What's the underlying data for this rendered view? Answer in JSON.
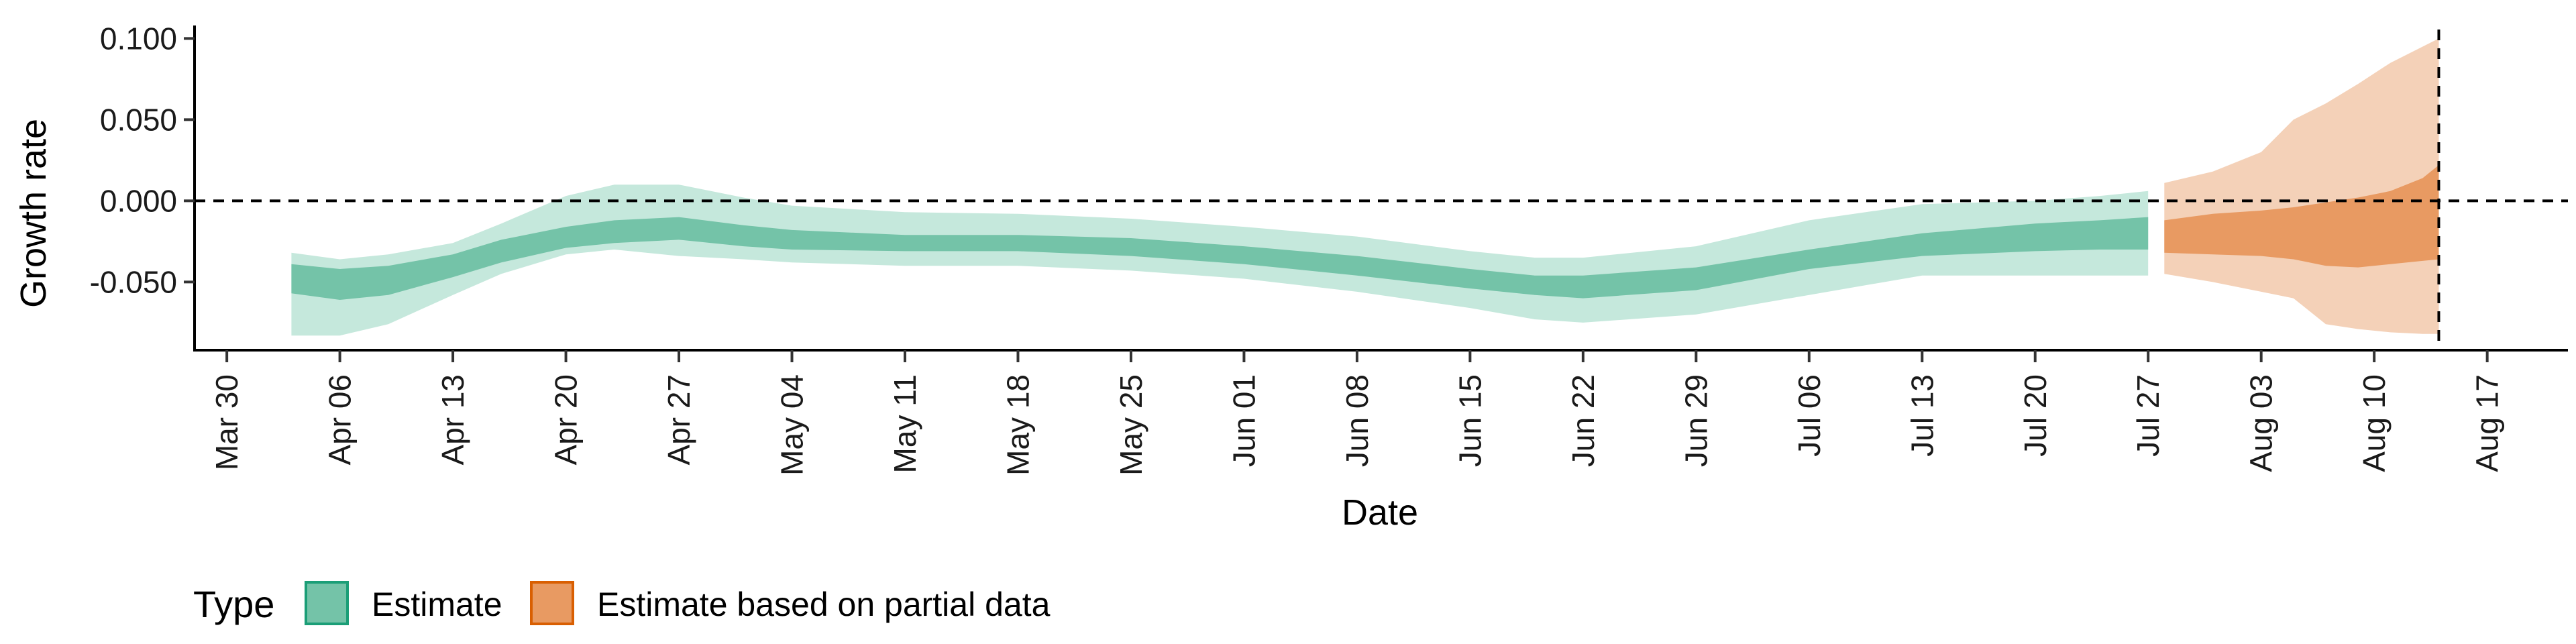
{
  "chart_data": {
    "type": "area",
    "xlabel": "Date",
    "ylabel": "Growth rate",
    "xlim": [
      "2020-03-28",
      "2020-08-22"
    ],
    "ylim": [
      -0.092,
      0.108
    ],
    "x_ticks": [
      "2020-03-30",
      "2020-04-06",
      "2020-04-13",
      "2020-04-20",
      "2020-04-27",
      "2020-05-04",
      "2020-05-11",
      "2020-05-18",
      "2020-05-25",
      "2020-06-01",
      "2020-06-08",
      "2020-06-15",
      "2020-06-22",
      "2020-06-29",
      "2020-07-06",
      "2020-07-13",
      "2020-07-20",
      "2020-07-27",
      "2020-08-03",
      "2020-08-10",
      "2020-08-17"
    ],
    "x_tick_labels": [
      "Mar 30",
      "Apr 06",
      "Apr 13",
      "Apr 20",
      "Apr 27",
      "May 04",
      "May 11",
      "May 18",
      "May 25",
      "Jun 01",
      "Jun 08",
      "Jun 15",
      "Jun 22",
      "Jun 29",
      "Jul 06",
      "Jul 13",
      "Jul 20",
      "Jul 27",
      "Aug 03",
      "Aug 10",
      "Aug 17"
    ],
    "y_ticks": [
      -0.05,
      0.0,
      0.05,
      0.1
    ],
    "y_tick_labels": [
      "-0.050",
      "0.000",
      "0.050",
      "0.100"
    ],
    "reference_lines": {
      "horizontal_y": 0.0,
      "vertical_x": "2020-08-14",
      "style": "dashed"
    },
    "legend": {
      "title": "Type",
      "position": "bottom-left"
    },
    "series": [
      {
        "name": "Estimate",
        "color": "#1b9e77",
        "fill_outer": "#c5e8dc",
        "fill_inner": "#74c3a8",
        "points": [
          {
            "x": "2020-04-03",
            "lo90": -0.083,
            "lo50": -0.057,
            "hi50": -0.039,
            "hi90": -0.032
          },
          {
            "x": "2020-04-06",
            "lo90": -0.083,
            "lo50": -0.061,
            "hi50": -0.042,
            "hi90": -0.036
          },
          {
            "x": "2020-04-09",
            "lo90": -0.076,
            "lo50": -0.058,
            "hi50": -0.04,
            "hi90": -0.033
          },
          {
            "x": "2020-04-13",
            "lo90": -0.058,
            "lo50": -0.047,
            "hi50": -0.033,
            "hi90": -0.026
          },
          {
            "x": "2020-04-16",
            "lo90": -0.045,
            "lo50": -0.038,
            "hi50": -0.024,
            "hi90": -0.014
          },
          {
            "x": "2020-04-20",
            "lo90": -0.033,
            "lo50": -0.029,
            "hi50": -0.016,
            "hi90": 0.003
          },
          {
            "x": "2020-04-23",
            "lo90": -0.03,
            "lo50": -0.026,
            "hi50": -0.012,
            "hi90": 0.01
          },
          {
            "x": "2020-04-27",
            "lo90": -0.034,
            "lo50": -0.024,
            "hi50": -0.01,
            "hi90": 0.01
          },
          {
            "x": "2020-05-01",
            "lo90": -0.036,
            "lo50": -0.028,
            "hi50": -0.015,
            "hi90": 0.002
          },
          {
            "x": "2020-05-04",
            "lo90": -0.038,
            "lo50": -0.03,
            "hi50": -0.018,
            "hi90": -0.003
          },
          {
            "x": "2020-05-11",
            "lo90": -0.04,
            "lo50": -0.031,
            "hi50": -0.021,
            "hi90": -0.007
          },
          {
            "x": "2020-05-18",
            "lo90": -0.04,
            "lo50": -0.031,
            "hi50": -0.021,
            "hi90": -0.008
          },
          {
            "x": "2020-05-25",
            "lo90": -0.043,
            "lo50": -0.034,
            "hi50": -0.023,
            "hi90": -0.011
          },
          {
            "x": "2020-06-01",
            "lo90": -0.048,
            "lo50": -0.039,
            "hi50": -0.028,
            "hi90": -0.016
          },
          {
            "x": "2020-06-08",
            "lo90": -0.056,
            "lo50": -0.046,
            "hi50": -0.034,
            "hi90": -0.022
          },
          {
            "x": "2020-06-15",
            "lo90": -0.066,
            "lo50": -0.054,
            "hi50": -0.042,
            "hi90": -0.031
          },
          {
            "x": "2020-06-19",
            "lo90": -0.073,
            "lo50": -0.058,
            "hi50": -0.046,
            "hi90": -0.035
          },
          {
            "x": "2020-06-22",
            "lo90": -0.075,
            "lo50": -0.06,
            "hi50": -0.046,
            "hi90": -0.035
          },
          {
            "x": "2020-06-29",
            "lo90": -0.07,
            "lo50": -0.055,
            "hi50": -0.041,
            "hi90": -0.028
          },
          {
            "x": "2020-07-06",
            "lo90": -0.058,
            "lo50": -0.042,
            "hi50": -0.03,
            "hi90": -0.012
          },
          {
            "x": "2020-07-13",
            "lo90": -0.046,
            "lo50": -0.034,
            "hi50": -0.02,
            "hi90": -0.002
          },
          {
            "x": "2020-07-20",
            "lo90": -0.046,
            "lo50": -0.031,
            "hi50": -0.014,
            "hi90": 0.0
          },
          {
            "x": "2020-07-24",
            "lo90": -0.046,
            "lo50": -0.03,
            "hi50": -0.012,
            "hi90": 0.003
          },
          {
            "x": "2020-07-27",
            "lo90": -0.046,
            "lo50": -0.03,
            "hi50": -0.01,
            "hi90": 0.006
          }
        ]
      },
      {
        "name": "Estimate based on partial data",
        "color": "#d95f02",
        "fill_outer": "#f4d1b8",
        "fill_inner": "#e89a62",
        "points": [
          {
            "x": "2020-07-28",
            "lo90": -0.045,
            "lo50": -0.032,
            "hi50": -0.012,
            "hi90": 0.011
          },
          {
            "x": "2020-07-31",
            "lo90": -0.05,
            "lo50": -0.033,
            "hi50": -0.008,
            "hi90": 0.018
          },
          {
            "x": "2020-08-03",
            "lo90": -0.056,
            "lo50": -0.034,
            "hi50": -0.006,
            "hi90": 0.03
          },
          {
            "x": "2020-08-05",
            "lo90": -0.06,
            "lo50": -0.036,
            "hi50": -0.004,
            "hi90": 0.05
          },
          {
            "x": "2020-08-07",
            "lo90": -0.076,
            "lo50": -0.04,
            "hi50": -0.001,
            "hi90": 0.06
          },
          {
            "x": "2020-08-09",
            "lo90": -0.079,
            "lo50": -0.041,
            "hi50": 0.002,
            "hi90": 0.072
          },
          {
            "x": "2020-08-11",
            "lo90": -0.081,
            "lo50": -0.039,
            "hi50": 0.006,
            "hi90": 0.085
          },
          {
            "x": "2020-08-13",
            "lo90": -0.082,
            "lo50": -0.037,
            "hi50": 0.014,
            "hi90": 0.095
          },
          {
            "x": "2020-08-14",
            "lo90": -0.082,
            "lo50": -0.036,
            "hi50": 0.022,
            "hi90": 0.1
          }
        ]
      }
    ]
  }
}
